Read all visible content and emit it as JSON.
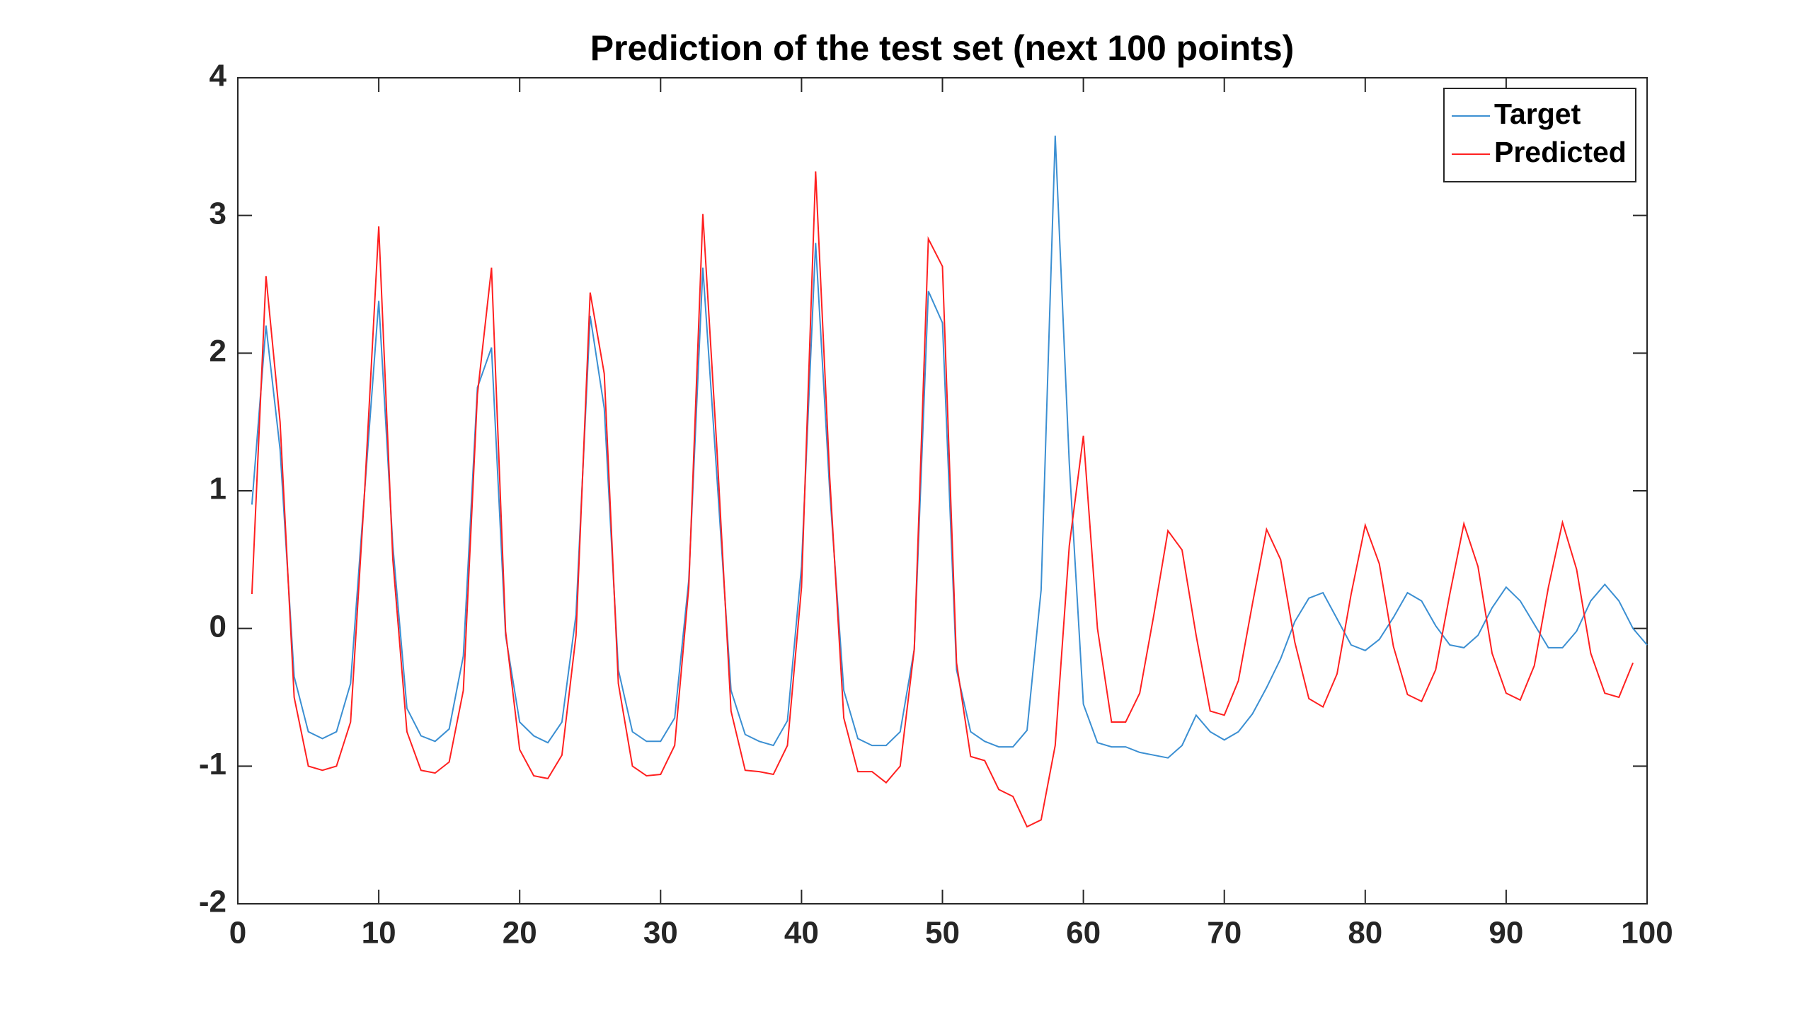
{
  "chart_data": {
    "type": "line",
    "title": "Prediction of the test set (next 100 points)",
    "x": [
      1,
      2,
      3,
      4,
      5,
      6,
      7,
      8,
      9,
      10,
      11,
      12,
      13,
      14,
      15,
      16,
      17,
      18,
      19,
      20,
      21,
      22,
      23,
      24,
      25,
      26,
      27,
      28,
      29,
      30,
      31,
      32,
      33,
      34,
      35,
      36,
      37,
      38,
      39,
      40,
      41,
      42,
      43,
      44,
      45,
      46,
      47,
      48,
      49,
      50,
      51,
      52,
      53,
      54,
      55,
      56,
      57,
      58,
      59,
      60,
      61,
      62,
      63,
      64,
      65,
      66,
      67,
      68,
      69,
      70,
      71,
      72,
      73,
      74,
      75,
      76,
      77,
      78,
      79,
      80,
      81,
      82,
      83,
      84,
      85,
      86,
      87,
      88,
      89,
      90,
      91,
      92,
      93,
      94,
      95,
      96,
      97,
      98,
      99,
      100
    ],
    "series": [
      {
        "name": "Target",
        "color": "#3b8fd2",
        "values": [
          0.9,
          2.2,
          1.3,
          -0.35,
          -0.75,
          -0.8,
          -0.75,
          -0.4,
          1.0,
          2.38,
          0.6,
          -0.58,
          -0.78,
          -0.82,
          -0.73,
          -0.2,
          1.75,
          2.04,
          -0.05,
          -0.68,
          -0.78,
          -0.83,
          -0.68,
          0.1,
          2.27,
          1.6,
          -0.3,
          -0.75,
          -0.82,
          -0.82,
          -0.65,
          0.35,
          2.62,
          1.1,
          -0.45,
          -0.77,
          -0.82,
          -0.85,
          -0.67,
          0.45,
          2.8,
          1.0,
          -0.45,
          -0.8,
          -0.85,
          -0.85,
          -0.75,
          -0.15,
          2.45,
          2.22,
          -0.3,
          -0.75,
          -0.82,
          -0.86,
          -0.86,
          -0.74,
          0.28,
          3.58,
          1.2,
          -0.55,
          -0.83,
          -0.86,
          -0.86,
          -0.9,
          -0.92,
          -0.94,
          -0.85,
          -0.63,
          -0.75,
          -0.81,
          -0.75,
          -0.62,
          -0.43,
          -0.22,
          0.05,
          0.22,
          0.26,
          0.07,
          -0.12,
          -0.16,
          -0.08,
          0.08,
          0.26,
          0.2,
          0.02,
          -0.12,
          -0.14,
          -0.05,
          0.15,
          0.3,
          0.2,
          0.03,
          -0.14,
          -0.14,
          -0.02,
          0.2,
          0.32,
          0.2,
          0.0,
          -0.12
        ]
      },
      {
        "name": "Predicted",
        "color": "#ff2020",
        "values": [
          0.25,
          2.56,
          1.5,
          -0.5,
          -1.0,
          -1.03,
          -1.0,
          -0.68,
          1.0,
          2.92,
          0.5,
          -0.75,
          -1.03,
          -1.05,
          -0.97,
          -0.45,
          1.7,
          2.62,
          -0.02,
          -0.88,
          -1.07,
          -1.09,
          -0.92,
          -0.05,
          2.44,
          1.85,
          -0.4,
          -1.0,
          -1.07,
          -1.06,
          -0.85,
          0.3,
          3.01,
          1.3,
          -0.6,
          -1.03,
          -1.04,
          -1.06,
          -0.85,
          0.3,
          3.32,
          1.1,
          -0.65,
          -1.04,
          -1.04,
          -1.12,
          -1.0,
          -0.15,
          2.83,
          2.63,
          -0.25,
          -0.93,
          -0.96,
          -1.17,
          -1.22,
          -1.44,
          -1.39,
          -0.85,
          0.6,
          1.4,
          0.0,
          -0.68,
          -0.68,
          -0.47,
          0.1,
          0.71,
          0.57,
          -0.05,
          -0.6,
          -0.63,
          -0.38,
          0.18,
          0.72,
          0.5,
          -0.1,
          -0.51,
          -0.57,
          -0.33,
          0.25,
          0.75,
          0.47,
          -0.13,
          -0.48,
          -0.53,
          -0.3,
          0.25,
          0.76,
          0.45,
          -0.18,
          -0.47,
          -0.52,
          -0.27,
          0.3,
          0.77,
          0.43,
          -0.18,
          -0.47,
          -0.5,
          -0.25,
          null
        ]
      }
    ],
    "xlim": [
      0,
      100
    ],
    "xticks": [
      0,
      10,
      20,
      30,
      40,
      50,
      60,
      70,
      80,
      90,
      100
    ],
    "ylim": [
      -2,
      4
    ],
    "yticks": [
      -2,
      -1,
      0,
      1,
      2,
      3,
      4
    ],
    "grid": false,
    "legend": "northeast"
  }
}
